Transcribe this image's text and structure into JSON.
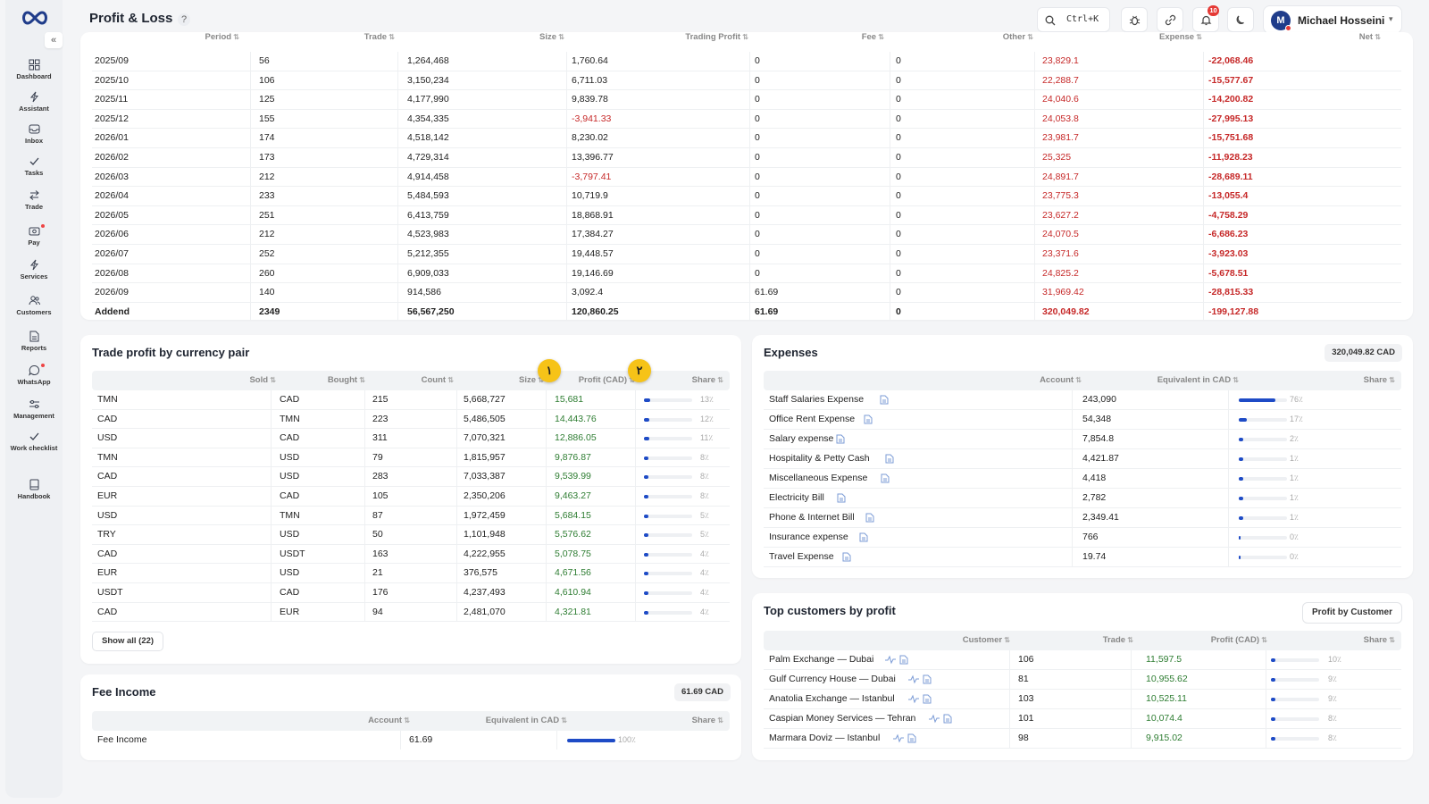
{
  "header": {
    "title": "Profit & Loss",
    "help_icon": "?",
    "search_shortcut": "Ctrl+K",
    "notification_count": "10",
    "user_initial": "M",
    "user_name": "Michael Hosseini"
  },
  "sidebar": {
    "items": [
      {
        "label": "Dashboard",
        "icon": "grid-icon"
      },
      {
        "label": "Assistant",
        "icon": "bolt-icon"
      },
      {
        "label": "Inbox",
        "icon": "inbox-icon"
      },
      {
        "label": "Tasks",
        "icon": "check-icon"
      },
      {
        "label": "Trade",
        "icon": "swap-icon"
      },
      {
        "label": "Pay",
        "icon": "pay-icon"
      },
      {
        "label": "Services",
        "icon": "bolt-icon"
      },
      {
        "label": "Customers",
        "icon": "users-icon"
      },
      {
        "label": "Reports",
        "icon": "report-icon"
      },
      {
        "label": "WhatsApp",
        "icon": "chat-icon"
      },
      {
        "label": "Management",
        "icon": "sliders-icon"
      },
      {
        "label": "Work checklist",
        "icon": "check-icon"
      },
      {
        "label": "Handbook",
        "icon": "book-icon"
      }
    ]
  },
  "period_table": {
    "columns": [
      "Period",
      "Trade",
      "Size",
      "Trading Profit",
      "Fee",
      "Other",
      "Expense",
      "Net"
    ],
    "rows": [
      [
        "2025/09",
        "56",
        "1,264,468",
        "1,760.64",
        "0",
        "0",
        "23,829.1",
        "-22,068.46"
      ],
      [
        "2025/10",
        "106",
        "3,150,234",
        "6,711.03",
        "0",
        "0",
        "22,288.7",
        "-15,577.67"
      ],
      [
        "2025/11",
        "125",
        "4,177,990",
        "9,839.78",
        "0",
        "0",
        "24,040.6",
        "-14,200.82"
      ],
      [
        "2025/12",
        "155",
        "4,354,335",
        "-3,941.33",
        "0",
        "0",
        "24,053.8",
        "-27,995.13"
      ],
      [
        "2026/01",
        "174",
        "4,518,142",
        "8,230.02",
        "0",
        "0",
        "23,981.7",
        "-15,751.68"
      ],
      [
        "2026/02",
        "173",
        "4,729,314",
        "13,396.77",
        "0",
        "0",
        "25,325",
        "-11,928.23"
      ],
      [
        "2026/03",
        "212",
        "4,914,458",
        "-3,797.41",
        "0",
        "0",
        "24,891.7",
        "-28,689.11"
      ],
      [
        "2026/04",
        "233",
        "5,484,593",
        "10,719.9",
        "0",
        "0",
        "23,775.3",
        "-13,055.4"
      ],
      [
        "2026/05",
        "251",
        "6,413,759",
        "18,868.91",
        "0",
        "0",
        "23,627.2",
        "-4,758.29"
      ],
      [
        "2026/06",
        "212",
        "4,523,983",
        "17,384.27",
        "0",
        "0",
        "24,070.5",
        "-6,686.23"
      ],
      [
        "2026/07",
        "252",
        "5,212,355",
        "19,448.57",
        "0",
        "0",
        "23,371.6",
        "-3,923.03"
      ],
      [
        "2026/08",
        "260",
        "6,909,033",
        "19,146.69",
        "0",
        "0",
        "24,825.2",
        "-5,678.51"
      ],
      [
        "2026/09",
        "140",
        "914,586",
        "3,092.4",
        "61.69",
        "0",
        "31,969.42",
        "-28,815.33"
      ]
    ],
    "total": [
      "Addend",
      "2349",
      "56,567,250",
      "120,860.25",
      "61.69",
      "0",
      "320,049.82",
      "-199,127.88"
    ]
  },
  "trade_profit": {
    "title": "Trade profit by currency pair",
    "columns": [
      "Sold",
      "Bought",
      "Count",
      "Size",
      "Profit (CAD)",
      "Share"
    ],
    "rows": [
      {
        "sold": "TMN",
        "bought": "CAD",
        "count": "215",
        "size": "5,668,727",
        "profit": "15,681",
        "share": 13,
        "share_label": "13٪"
      },
      {
        "sold": "CAD",
        "bought": "TMN",
        "count": "223",
        "size": "5,486,505",
        "profit": "14,443.76",
        "share": 12,
        "share_label": "12٪"
      },
      {
        "sold": "USD",
        "bought": "CAD",
        "count": "311",
        "size": "7,070,321",
        "profit": "12,886.05",
        "share": 11,
        "share_label": "11٪"
      },
      {
        "sold": "TMN",
        "bought": "USD",
        "count": "79",
        "size": "1,815,957",
        "profit": "9,876.87",
        "share": 8,
        "share_label": "8٪"
      },
      {
        "sold": "CAD",
        "bought": "USD",
        "count": "283",
        "size": "7,033,387",
        "profit": "9,539.99",
        "share": 8,
        "share_label": "8٪"
      },
      {
        "sold": "EUR",
        "bought": "CAD",
        "count": "105",
        "size": "2,350,206",
        "profit": "9,463.27",
        "share": 8,
        "share_label": "8٪"
      },
      {
        "sold": "USD",
        "bought": "TMN",
        "count": "87",
        "size": "1,972,459",
        "profit": "5,684.15",
        "share": 5,
        "share_label": "5٪"
      },
      {
        "sold": "TRY",
        "bought": "USD",
        "count": "50",
        "size": "1,101,948",
        "profit": "5,576.62",
        "share": 5,
        "share_label": "5٪"
      },
      {
        "sold": "CAD",
        "bought": "USDT",
        "count": "163",
        "size": "4,222,955",
        "profit": "5,078.75",
        "share": 4,
        "share_label": "4٪"
      },
      {
        "sold": "EUR",
        "bought": "USD",
        "count": "21",
        "size": "376,575",
        "profit": "4,671.56",
        "share": 4,
        "share_label": "4٪"
      },
      {
        "sold": "USDT",
        "bought": "CAD",
        "count": "176",
        "size": "4,237,493",
        "profit": "4,610.94",
        "share": 4,
        "share_label": "4٪"
      },
      {
        "sold": "CAD",
        "bought": "EUR",
        "count": "94",
        "size": "2,481,070",
        "profit": "4,321.81",
        "share": 4,
        "share_label": "4٪"
      }
    ],
    "show_all": "Show all (22)",
    "markers": [
      "١",
      "٢"
    ]
  },
  "expenses": {
    "title": "Expenses",
    "total": "320,049.82 CAD",
    "columns": [
      "Account",
      "Equivalent in CAD",
      "Share"
    ],
    "rows": [
      {
        "account": "Staff Salaries Expense",
        "value": "243,090",
        "share": 76,
        "share_label": "76٪"
      },
      {
        "account": "Office Rent Expense",
        "value": "54,348",
        "share": 17,
        "share_label": "17٪"
      },
      {
        "account": "Salary expense",
        "value": "7,854.8",
        "share": 2,
        "share_label": "2٪"
      },
      {
        "account": "Hospitality & Petty Cash",
        "value": "4,421.87",
        "share": 1,
        "share_label": "1٪"
      },
      {
        "account": "Miscellaneous Expense",
        "value": "4,418",
        "share": 1,
        "share_label": "1٪"
      },
      {
        "account": "Electricity Bill",
        "value": "2,782",
        "share": 1,
        "share_label": "1٪"
      },
      {
        "account": "Phone & Internet Bill",
        "value": "2,349.41",
        "share": 1,
        "share_label": "1٪"
      },
      {
        "account": "Insurance expense",
        "value": "766",
        "share": 0,
        "share_label": "0٪"
      },
      {
        "account": "Travel Expense",
        "value": "19.74",
        "share": 0,
        "share_label": "0٪"
      }
    ]
  },
  "fee_income": {
    "title": "Fee Income",
    "total": "61.69 CAD",
    "columns": [
      "Account",
      "Equivalent in CAD",
      "Share"
    ],
    "rows": [
      {
        "account": "Fee Income",
        "value": "61.69",
        "share": 100,
        "share_label": "100٪"
      }
    ]
  },
  "top_customers": {
    "title": "Top customers by profit",
    "button": "Profit by Customer",
    "columns": [
      "Customer",
      "Trade",
      "Profit (CAD)",
      "Share"
    ],
    "rows": [
      {
        "customer": "Palm Exchange — Dubai",
        "trade": "106",
        "profit": "11,597.5",
        "share": 10,
        "share_label": "10٪"
      },
      {
        "customer": "Gulf Currency House — Dubai",
        "trade": "81",
        "profit": "10,955.62",
        "share": 9,
        "share_label": "9٪"
      },
      {
        "customer": "Anatolia Exchange — Istanbul",
        "trade": "103",
        "profit": "10,525.11",
        "share": 9,
        "share_label": "9٪"
      },
      {
        "customer": "Caspian Money Services — Tehran",
        "trade": "101",
        "profit": "10,074.4",
        "share": 8,
        "share_label": "8٪"
      },
      {
        "customer": "Marmara Doviz — Istanbul",
        "trade": "98",
        "profit": "9,915.02",
        "share": 8,
        "share_label": "8٪"
      }
    ]
  },
  "colors": {
    "accent": "#1e4bc6",
    "negative": "#c62828",
    "positive": "#2e7d32",
    "marker": "#f6c318"
  }
}
